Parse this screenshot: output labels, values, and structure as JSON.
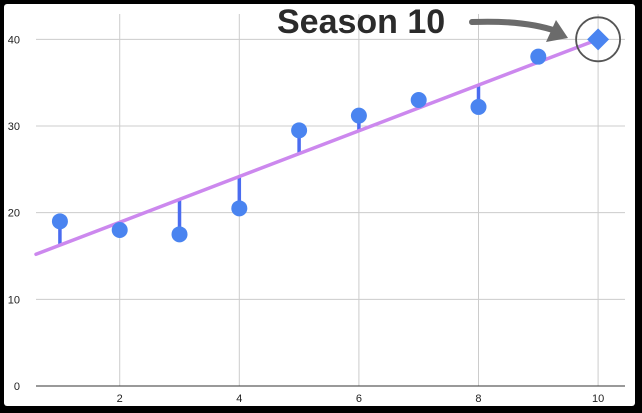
{
  "chart_data": {
    "type": "scatter",
    "x": [
      1,
      2,
      3,
      4,
      5,
      6,
      7,
      8,
      9
    ],
    "y": [
      19,
      18,
      17.5,
      20.5,
      29.5,
      31.2,
      33,
      32.2,
      38
    ],
    "highlight_point": {
      "x": 10,
      "y": 40,
      "marker": "diamond",
      "circled": true
    },
    "trendline": {
      "x": [
        0.6,
        10
      ],
      "y": [
        15.2,
        40
      ]
    },
    "residuals": true,
    "xticks": [
      "2",
      "4",
      "6",
      "8",
      "10"
    ],
    "yticks": [
      "0",
      "10",
      "20",
      "30",
      "40"
    ],
    "xlim": [
      0.6,
      10.45
    ],
    "ylim": [
      0,
      42
    ],
    "grid": true,
    "annotation": {
      "text": "Season 10",
      "arrow": true
    },
    "colors": {
      "points": "#4a84f0",
      "residual": "#4a6cf0",
      "trendline": "#cc88ee",
      "grid": "#cccccc",
      "arrow": "#6b6b6b"
    }
  }
}
